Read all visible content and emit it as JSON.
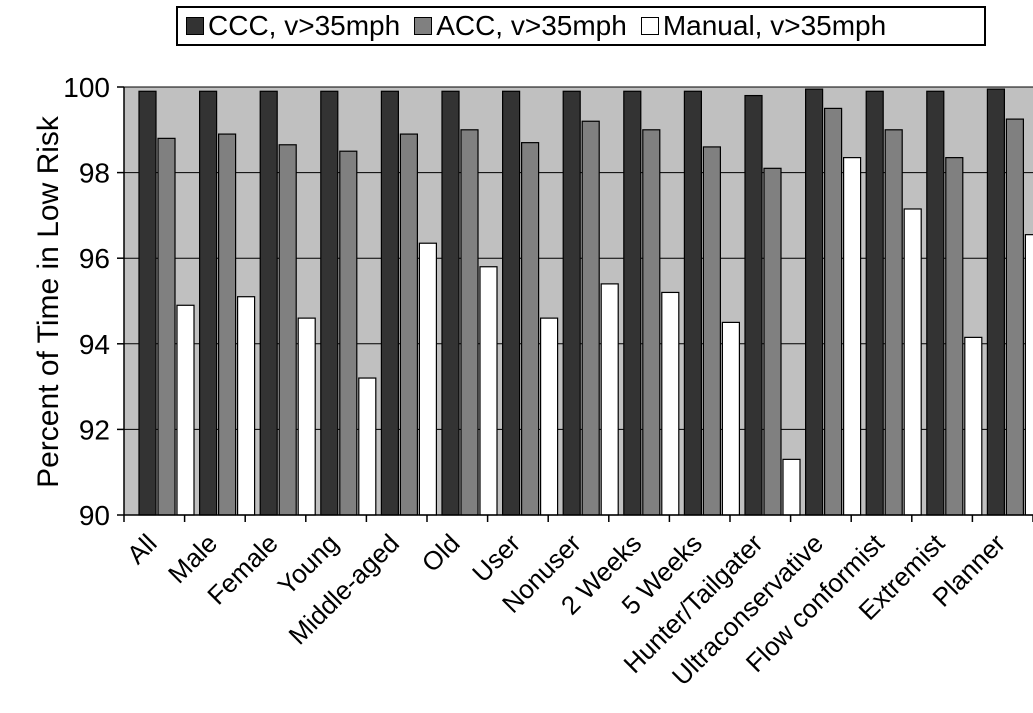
{
  "chart_data": {
    "type": "bar",
    "title": "",
    "xlabel": "",
    "ylabel": "Percent of Time in Low Risk",
    "ylim": [
      90,
      100
    ],
    "yticks": [
      90,
      92,
      94,
      96,
      98,
      100
    ],
    "grid": true,
    "legend_position": "top",
    "categories": [
      "All",
      "Male",
      "Female",
      "Young",
      "Middle-aged",
      "Old",
      "User",
      "Nonuser",
      "2 Weeks",
      "5 Weeks",
      "Hunter/Tailgater",
      "Ultraconservative",
      "Flow conformist",
      "Extremist",
      "Planner"
    ],
    "series": [
      {
        "name": "CCC, v>35mph",
        "color": "#333333",
        "values": [
          99.9,
          99.9,
          99.9,
          99.9,
          99.9,
          99.9,
          99.9,
          99.9,
          99.9,
          99.9,
          99.8,
          99.95,
          99.9,
          99.9,
          99.95
        ]
      },
      {
        "name": "ACC, v>35mph",
        "color": "#808080",
        "values": [
          98.8,
          98.9,
          98.65,
          98.5,
          98.9,
          99.0,
          98.7,
          99.2,
          99.0,
          98.6,
          98.1,
          99.5,
          99.0,
          98.35,
          99.25
        ]
      },
      {
        "name": "Manual, v>35mph",
        "color": "#ffffff",
        "values": [
          94.9,
          95.1,
          94.6,
          93.2,
          96.35,
          95.8,
          94.6,
          95.4,
          95.2,
          94.5,
          91.3,
          98.35,
          97.15,
          94.15,
          96.55
        ]
      }
    ]
  },
  "colors": {
    "plot_background": "#c0c0c0",
    "gridline": "#000000"
  }
}
